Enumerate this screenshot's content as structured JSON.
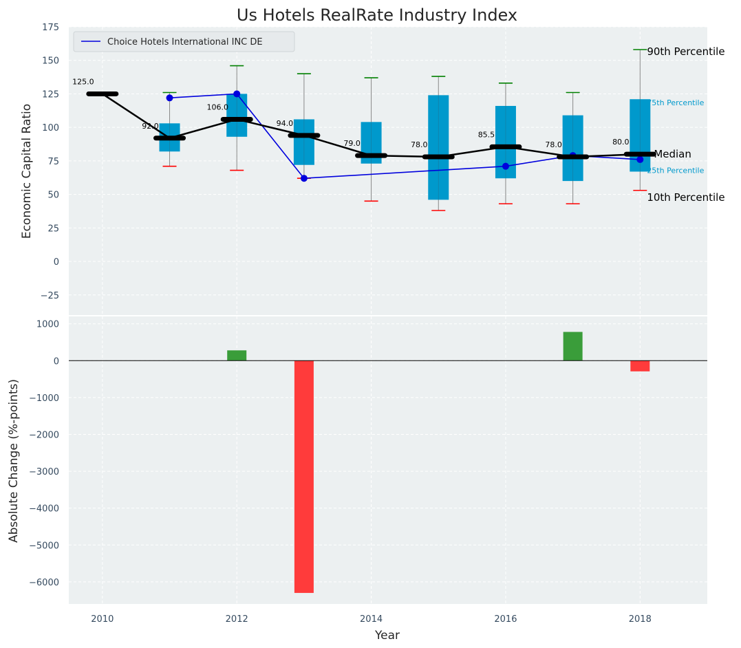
{
  "colors": {
    "plot_bg": "#ecf0f1",
    "grid": "#ffffff",
    "box": "#0099cc",
    "whisker": "#888888",
    "cap_high": "#008000",
    "cap_low": "#ff0000",
    "median": "#000000",
    "company": "#0000dd",
    "bar_pos": "#3a9d3a",
    "bar_neg": "#ff3b3b"
  },
  "chart_data": [
    {
      "type": "box",
      "title": "Us Hotels RealRate Industry Index",
      "ylabel": "Economic Capital Ratio",
      "ylim": [
        -40,
        175
      ],
      "xlim": [
        2009.5,
        2019
      ],
      "yticks": [
        -25,
        0,
        25,
        50,
        75,
        100,
        125,
        150,
        175
      ],
      "yticklabels": [
        "−25",
        "0",
        "25",
        "50",
        "75",
        "100",
        "125",
        "150",
        "175"
      ],
      "grid": true,
      "legend_placement": "top-left",
      "legend": [
        "Choice Hotels International INC DE"
      ],
      "years": [
        2010,
        2011,
        2012,
        2013,
        2014,
        2015,
        2016,
        2017,
        2018
      ],
      "p10": [
        null,
        71,
        68,
        62,
        45,
        38,
        43,
        43,
        53
      ],
      "p25": [
        null,
        82,
        93,
        72,
        73,
        46,
        62,
        60,
        67
      ],
      "median": [
        125,
        92,
        106,
        94,
        79,
        78,
        85.5,
        78,
        80
      ],
      "p75": [
        null,
        103,
        125,
        106,
        104,
        124,
        116,
        109,
        121
      ],
      "p90": [
        null,
        126,
        146,
        140,
        137,
        138,
        133,
        126,
        158
      ],
      "median_labels": [
        "125.0",
        "92.0",
        "106.0",
        "94.0",
        "79.0",
        "78.0",
        "85.5",
        "78.0",
        "80.0"
      ],
      "series": [
        {
          "name": "Choice Hotels International INC DE",
          "x": [
            2011,
            2012,
            2013,
            2016,
            2017,
            2018
          ],
          "values": [
            122,
            125,
            62,
            71,
            79,
            76
          ]
        }
      ],
      "annotations": {
        "p90": "90th Percentile",
        "p75": "75th Percentile",
        "median": "Median",
        "p25": "25th Percentile",
        "p10": "10th Percentile"
      }
    },
    {
      "type": "bar",
      "ylabel": "Absolute Change (%-points)",
      "xlabel": "Year",
      "ylim": [
        -6600,
        1200
      ],
      "yticks": [
        -6000,
        -5000,
        -4000,
        -3000,
        -2000,
        -1000,
        0,
        1000
      ],
      "yticklabels": [
        "−6000",
        "−5000",
        "−4000",
        "−3000",
        "−2000",
        "−1000",
        "0",
        "1000"
      ],
      "xticks": [
        2010,
        2012,
        2014,
        2016,
        2018
      ],
      "xticklabels": [
        "2010",
        "2012",
        "2014",
        "2016",
        "2018"
      ],
      "grid": true,
      "categories": [
        2012,
        2013,
        2017,
        2018
      ],
      "values": [
        280,
        -6300,
        780,
        -290
      ]
    }
  ]
}
